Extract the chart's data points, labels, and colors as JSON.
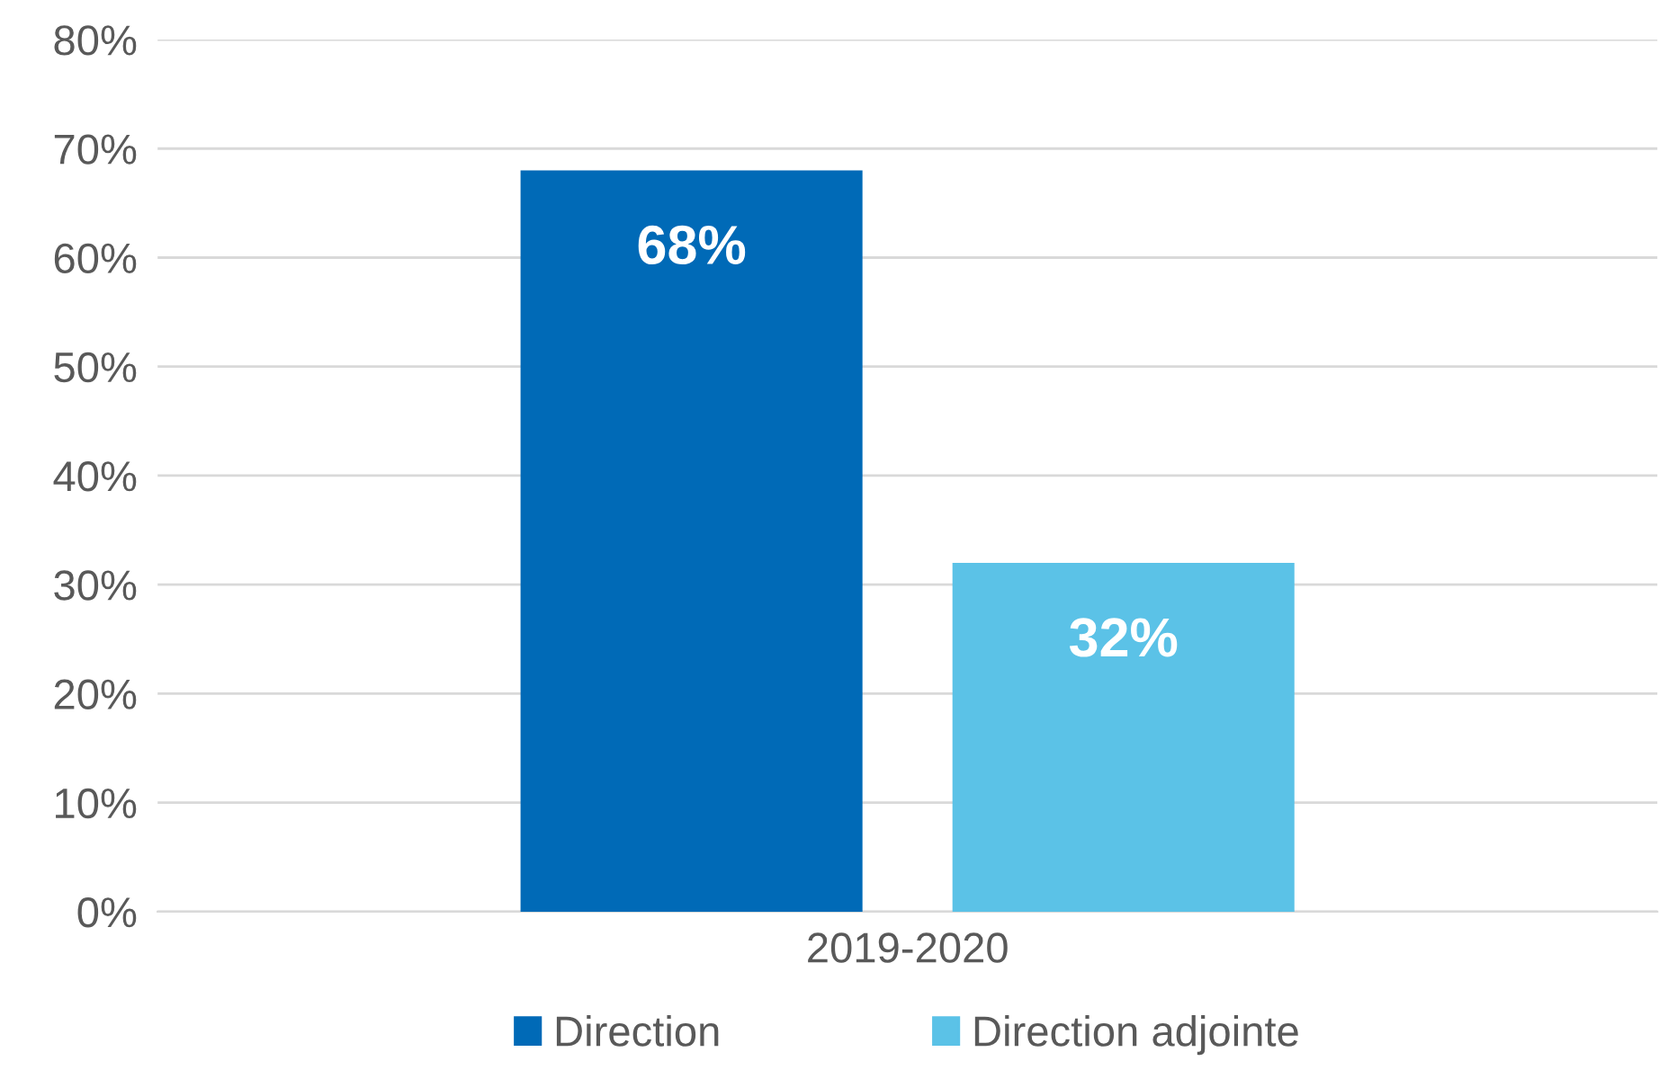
{
  "chart_data": {
    "type": "bar",
    "categories": [
      "2019-2020"
    ],
    "series": [
      {
        "name": "Direction",
        "color": "#006ab7",
        "values": [
          68
        ],
        "value_labels": [
          "68%"
        ]
      },
      {
        "name": "Direction adjointe",
        "color": "#5bc2e7",
        "values": [
          32
        ],
        "value_labels": [
          "32%"
        ]
      }
    ],
    "ylim": [
      0,
      80
    ],
    "yticks": [
      {
        "value": 0,
        "label": "0%"
      },
      {
        "value": 10,
        "label": "10%"
      },
      {
        "value": 20,
        "label": "20%"
      },
      {
        "value": 30,
        "label": "30%"
      },
      {
        "value": 40,
        "label": "40%"
      },
      {
        "value": 50,
        "label": "50%"
      },
      {
        "value": 60,
        "label": "60%"
      },
      {
        "value": 70,
        "label": "70%"
      },
      {
        "value": 80,
        "label": "80%"
      }
    ],
    "grid": "y",
    "legend": "bottom"
  }
}
